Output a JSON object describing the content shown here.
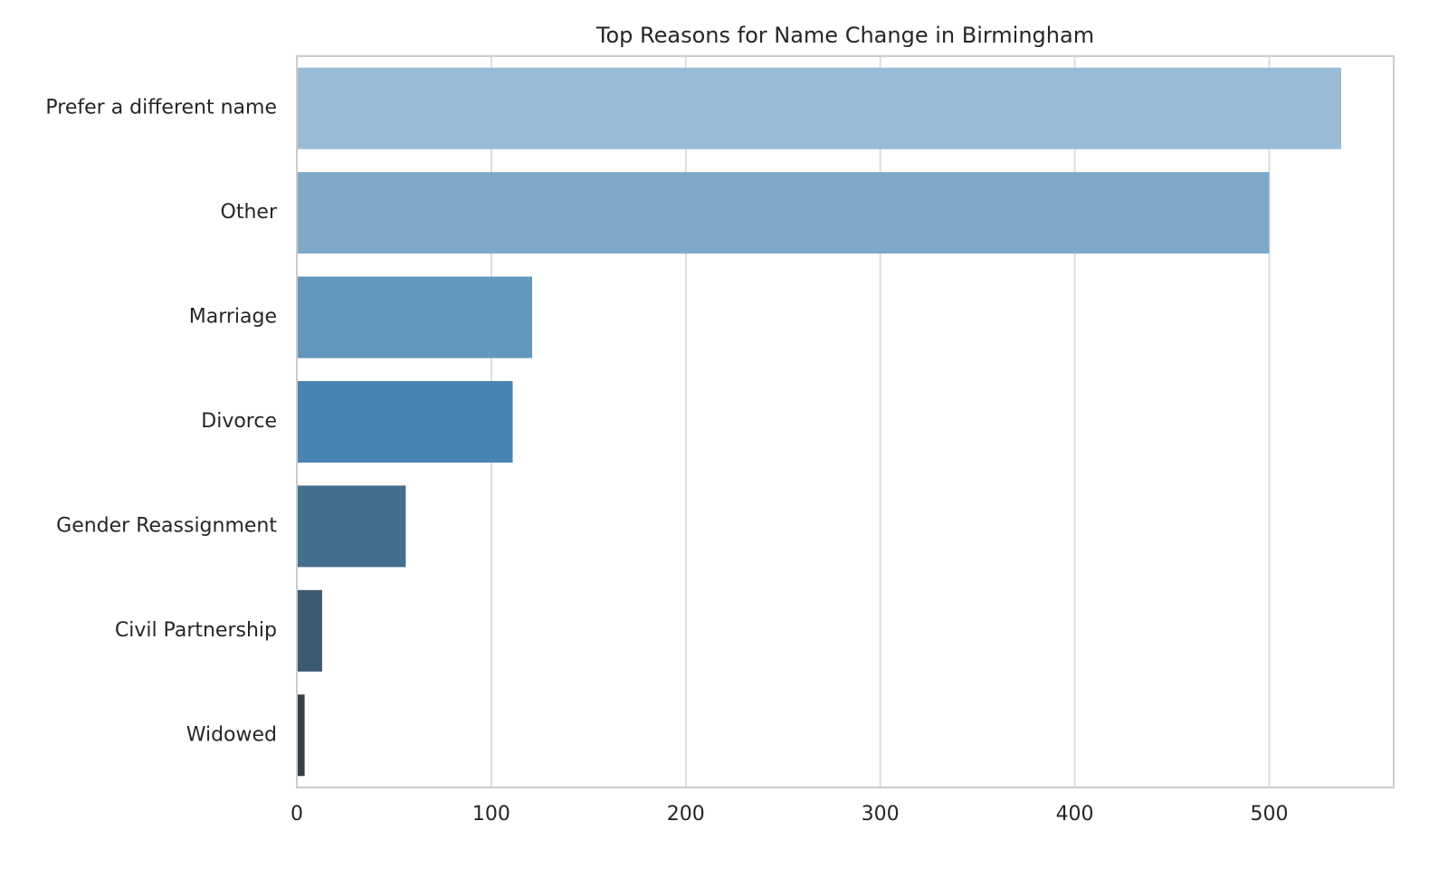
{
  "chart_data": {
    "type": "barh",
    "title": "Top Reasons for Name Change in Birmingham",
    "categories": [
      "Prefer a different name",
      "Other",
      "Marriage",
      "Divorce",
      "Gender Reassignment",
      "Civil Partnership",
      "Widowed"
    ],
    "values": [
      537,
      500,
      121,
      111,
      56,
      13,
      4
    ],
    "colors": [
      "#9abbd5",
      "#7ea9c9",
      "#6397bd",
      "#4884b2",
      "#436f8f",
      "#3c5a72",
      "#343d4a"
    ],
    "xlim": [
      0,
      564
    ],
    "xticks": [
      0,
      100,
      200,
      300,
      400,
      500
    ],
    "grid": true
  }
}
